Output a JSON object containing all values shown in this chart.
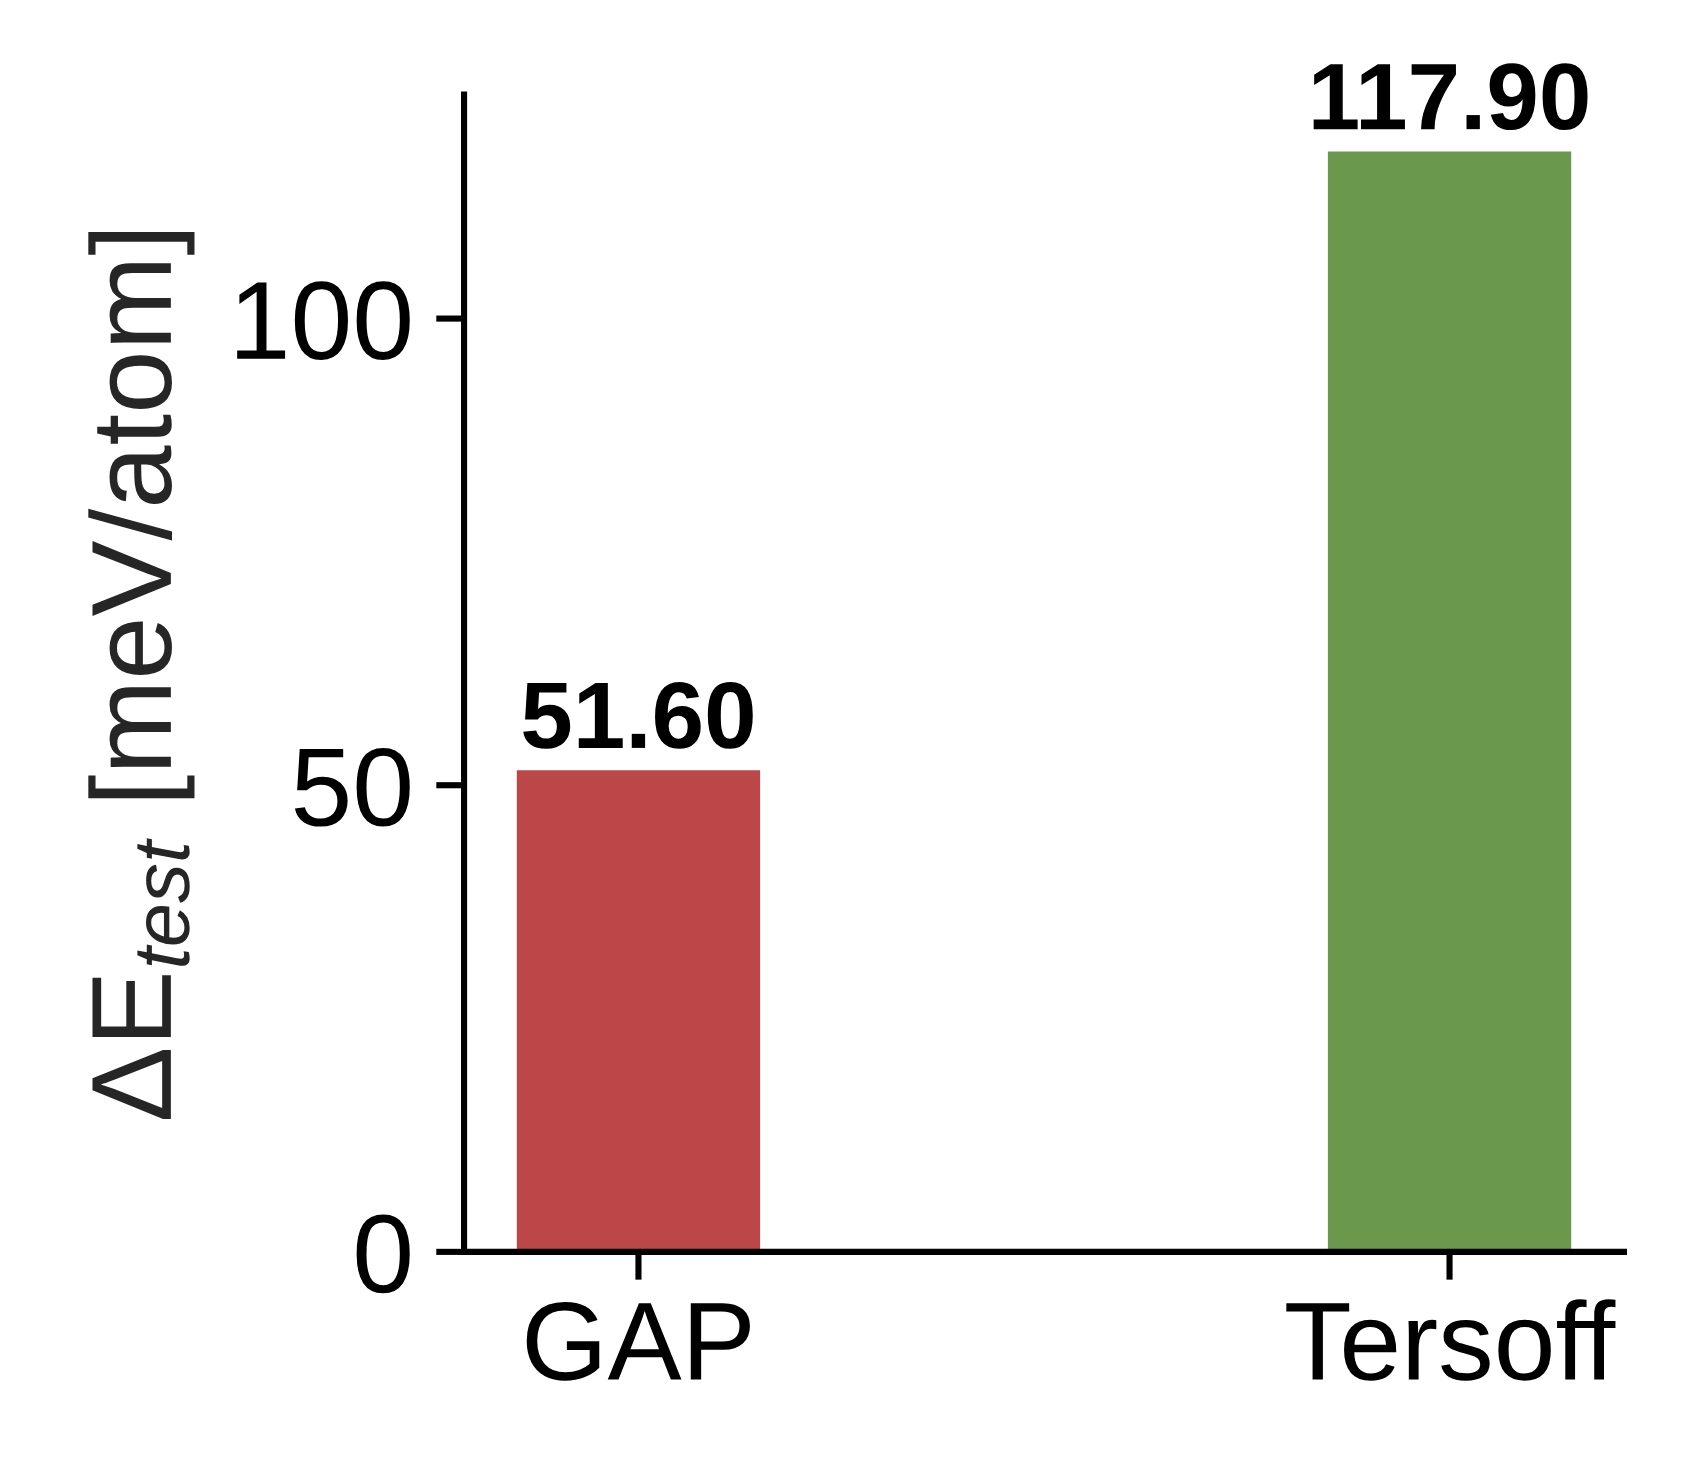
{
  "chart_data": {
    "type": "bar",
    "ylabel": "ΔE$_{test}$ [meV/atom]",
    "categories": [
      "GAP",
      "Tersoff"
    ],
    "values": [
      51.6,
      117.9
    ],
    "colors": [
      "#bc4749",
      "#6a994e"
    ],
    "value_labels": [
      "51.60",
      "117.90"
    ],
    "ylim": [
      0,
      124
    ],
    "yticks": [
      0,
      50,
      100
    ],
    "grid": false
  }
}
